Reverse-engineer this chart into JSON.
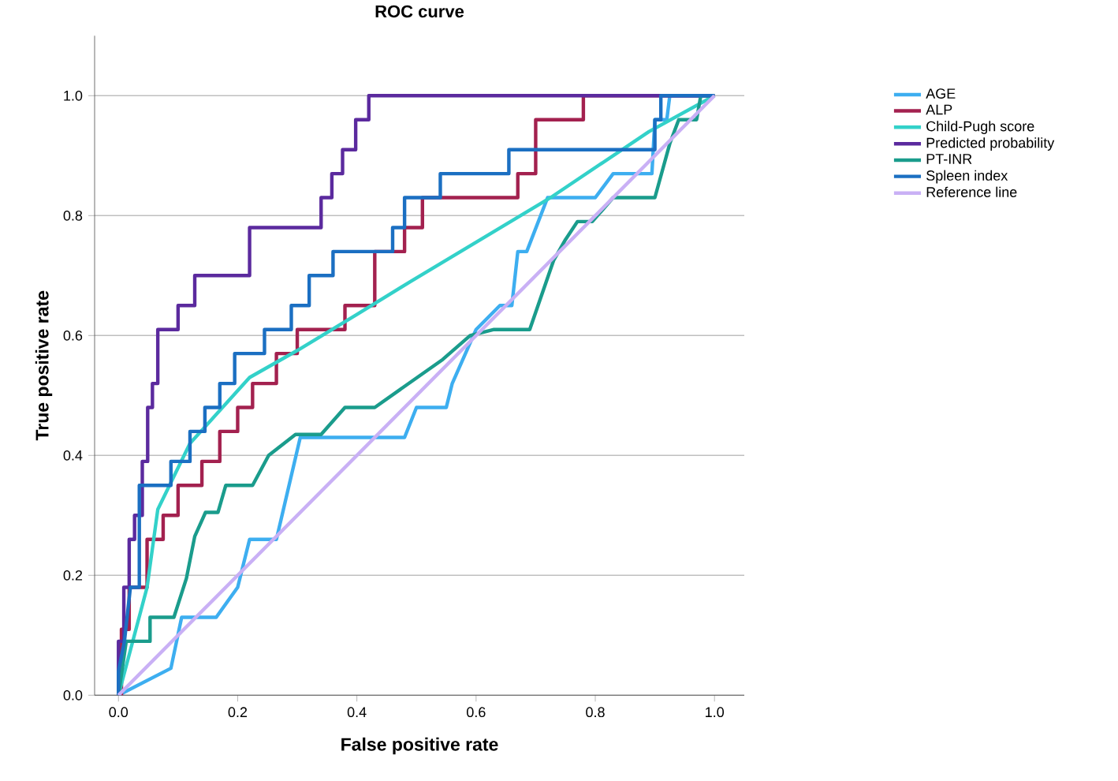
{
  "chart_data": {
    "type": "line",
    "title": "ROC curve",
    "xlabel": "False positive rate",
    "ylabel": "True positive rate",
    "xlim": [
      -0.04,
      1.05
    ],
    "ylim": [
      0,
      1.1
    ],
    "xticks": [
      {
        "value": 0,
        "label": "0.0"
      },
      {
        "value": 0.2,
        "label": "0.2"
      },
      {
        "value": 0.4,
        "label": "0.4"
      },
      {
        "value": 0.6,
        "label": "0.6"
      },
      {
        "value": 0.8,
        "label": "0.8"
      },
      {
        "value": 1,
        "label": "1.0"
      }
    ],
    "yticks": [
      {
        "value": 0,
        "label": "0.0"
      },
      {
        "value": 0.2,
        "label": "0.2"
      },
      {
        "value": 0.4,
        "label": "0.4"
      },
      {
        "value": 0.6,
        "label": "0.6"
      },
      {
        "value": 0.8,
        "label": "0.8"
      },
      {
        "value": 1,
        "label": "1.0"
      }
    ],
    "grid": "y",
    "legend": "right",
    "marker": "none",
    "line_style": "solid",
    "series": [
      {
        "name": "AGE",
        "color": "#3daef0",
        "x": [
          0,
          0.088,
          0.106,
          0.164,
          0.2,
          0.22,
          0.265,
          0.305,
          0.48,
          0.5,
          0.55,
          0.56,
          0.6,
          0.64,
          0.66,
          0.67,
          0.685,
          0.72,
          0.8,
          0.83,
          0.895,
          0.9,
          0.92,
          0.925,
          1
        ],
        "values": [
          0,
          0.045,
          0.13,
          0.13,
          0.18,
          0.26,
          0.26,
          0.43,
          0.43,
          0.48,
          0.48,
          0.52,
          0.61,
          0.65,
          0.65,
          0.74,
          0.74,
          0.83,
          0.83,
          0.87,
          0.87,
          0.96,
          0.96,
          1,
          1
        ]
      },
      {
        "name": "ALP",
        "color": "#a3214f",
        "x": [
          0,
          0.005,
          0.005,
          0.018,
          0.018,
          0.048,
          0.048,
          0.075,
          0.075,
          0.1,
          0.1,
          0.14,
          0.14,
          0.17,
          0.17,
          0.2,
          0.2,
          0.225,
          0.225,
          0.265,
          0.265,
          0.3,
          0.3,
          0.38,
          0.38,
          0.43,
          0.43,
          0.48,
          0.48,
          0.51,
          0.51,
          0.67,
          0.67,
          0.7,
          0.7,
          0.78,
          0.78,
          1
        ],
        "values": [
          0,
          0,
          0.11,
          0.11,
          0.18,
          0.18,
          0.26,
          0.26,
          0.3,
          0.3,
          0.35,
          0.35,
          0.39,
          0.39,
          0.44,
          0.44,
          0.48,
          0.48,
          0.52,
          0.52,
          0.57,
          0.57,
          0.61,
          0.61,
          0.65,
          0.65,
          0.74,
          0.74,
          0.78,
          0.78,
          0.83,
          0.83,
          0.87,
          0.87,
          0.96,
          0.96,
          1,
          1
        ]
      },
      {
        "name": "Child-Pugh score",
        "color": "#33d1c9",
        "x": [
          0,
          0.048,
          0.066,
          0.12,
          0.22,
          0.3,
          0.4,
          0.49,
          0.725,
          0.89,
          1
        ],
        "values": [
          0,
          0.18,
          0.31,
          0.42,
          0.53,
          0.575,
          0.635,
          0.69,
          0.83,
          0.94,
          1
        ]
      },
      {
        "name": "Predicted probability",
        "color": "#5b2a9e",
        "x": [
          0,
          0,
          0.009,
          0.009,
          0.018,
          0.018,
          0.027,
          0.027,
          0.04,
          0.04,
          0.049,
          0.049,
          0.057,
          0.057,
          0.066,
          0.066,
          0.1,
          0.1,
          0.128,
          0.128,
          0.22,
          0.22,
          0.34,
          0.34,
          0.358,
          0.358,
          0.376,
          0.376,
          0.398,
          0.398,
          0.42,
          0.42,
          1
        ],
        "values": [
          0,
          0.09,
          0.09,
          0.18,
          0.18,
          0.26,
          0.26,
          0.3,
          0.3,
          0.39,
          0.39,
          0.48,
          0.48,
          0.52,
          0.52,
          0.61,
          0.61,
          0.65,
          0.65,
          0.7,
          0.7,
          0.78,
          0.78,
          0.83,
          0.83,
          0.87,
          0.87,
          0.91,
          0.91,
          0.96,
          0.96,
          1,
          1
        ]
      },
      {
        "name": "PT-INR",
        "color": "#1a9c8c",
        "x": [
          0,
          0.013,
          0.053,
          0.053,
          0.093,
          0.114,
          0.128,
          0.146,
          0.167,
          0.18,
          0.225,
          0.252,
          0.297,
          0.34,
          0.38,
          0.43,
          0.544,
          0.59,
          0.63,
          0.69,
          0.73,
          0.75,
          0.77,
          0.795,
          0.83,
          0.9,
          0.925,
          0.94,
          0.97,
          0.977,
          1
        ],
        "values": [
          0,
          0.09,
          0.09,
          0.13,
          0.13,
          0.195,
          0.265,
          0.305,
          0.305,
          0.35,
          0.35,
          0.4,
          0.435,
          0.435,
          0.48,
          0.48,
          0.56,
          0.6,
          0.61,
          0.61,
          0.725,
          0.76,
          0.79,
          0.79,
          0.83,
          0.83,
          0.92,
          0.96,
          0.96,
          1,
          1
        ]
      },
      {
        "name": "Spleen index",
        "color": "#1b6fc2",
        "x": [
          0,
          0,
          0.01,
          0.02,
          0.035,
          0.035,
          0.088,
          0.088,
          0.12,
          0.12,
          0.145,
          0.145,
          0.17,
          0.17,
          0.195,
          0.195,
          0.245,
          0.245,
          0.29,
          0.29,
          0.32,
          0.32,
          0.36,
          0.36,
          0.46,
          0.46,
          0.48,
          0.48,
          0.54,
          0.54,
          0.655,
          0.655,
          0.9,
          0.9,
          0.91,
          0.91,
          1
        ],
        "values": [
          0,
          0.04,
          0.09,
          0.18,
          0.18,
          0.35,
          0.35,
          0.39,
          0.39,
          0.44,
          0.44,
          0.48,
          0.48,
          0.52,
          0.52,
          0.57,
          0.57,
          0.61,
          0.61,
          0.65,
          0.65,
          0.7,
          0.7,
          0.74,
          0.74,
          0.78,
          0.78,
          0.83,
          0.83,
          0.87,
          0.87,
          0.91,
          0.91,
          0.96,
          0.96,
          1,
          1
        ]
      },
      {
        "name": "Reference line",
        "color": "#c9b0f5",
        "x": [
          0,
          1
        ],
        "values": [
          0,
          1
        ]
      }
    ]
  }
}
